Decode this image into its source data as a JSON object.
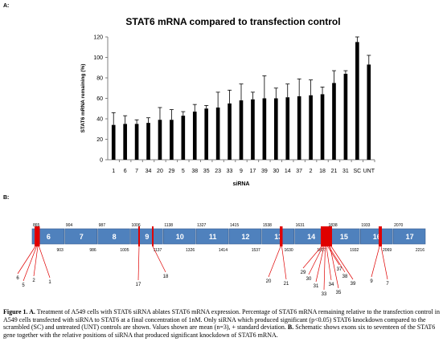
{
  "panel_a_label": "A:",
  "panel_b_label": "B:",
  "chart_data": {
    "type": "bar",
    "title": "STAT6 mRNA compared to transfection control",
    "xlabel": "siRNA",
    "ylabel": "STAT6 mRNA remaining (%)",
    "ylim": [
      0,
      120
    ],
    "yticks": [
      0,
      20,
      40,
      60,
      80,
      100,
      120
    ],
    "categories": [
      "1",
      "6",
      "7",
      "34",
      "20",
      "29",
      "5",
      "38",
      "35",
      "23",
      "33",
      "9",
      "17",
      "39",
      "30",
      "14",
      "37",
      "2",
      "18",
      "21",
      "31",
      "SC",
      "UNT"
    ],
    "values": [
      34,
      35,
      35,
      36,
      39,
      39,
      43,
      47,
      50,
      51,
      55,
      58,
      59,
      60,
      60,
      61,
      62,
      63,
      64,
      75,
      84,
      115,
      93
    ],
    "errors": [
      12,
      8,
      4,
      5,
      12,
      10,
      4,
      7,
      3,
      15,
      13,
      16,
      7,
      22,
      10,
      13,
      17,
      15,
      7,
      12,
      3,
      5,
      9
    ],
    "bar_color": "#000000",
    "grid": false
  },
  "exon_diagram": {
    "exons": [
      {
        "number": "6",
        "start": "865",
        "end": "903"
      },
      {
        "number": "7",
        "start": "904",
        "end": "986"
      },
      {
        "number": "8",
        "start": "987",
        "end": "1005"
      },
      {
        "number": "9",
        "start": "1006",
        "end": "1137"
      },
      {
        "number": "10",
        "start": "1138",
        "end": "1326"
      },
      {
        "number": "11",
        "start": "1327",
        "end": "1414"
      },
      {
        "number": "12",
        "start": "1415",
        "end": "1537"
      },
      {
        "number": "13",
        "start": "1538",
        "end": "1630"
      },
      {
        "number": "14",
        "start": "1631",
        "end": "1837"
      },
      {
        "number": "15",
        "start": "1838",
        "end": "1932"
      },
      {
        "number": "16",
        "start": "1933",
        "end": "2069"
      },
      {
        "number": "17",
        "start": "2070",
        "end": "2216"
      }
    ],
    "sirna_labels": [
      "6",
      "5",
      "2",
      "1",
      "17",
      "18",
      "20",
      "21",
      "29",
      "30",
      "31",
      "33",
      "34",
      "37",
      "38",
      "35",
      "39",
      "9",
      "7"
    ],
    "exon_color": "#4f81bd",
    "sirna_color": "#e00000"
  },
  "caption": {
    "figure_label": "Figure 1. A.",
    "part_a": "Treatment of A549 cells with STAT6 siRNA ablates STAT6 mRNA expression. Percentage of STAT6 mRNA remaining relative to the transfection control in A549 cells transfected with siRNA to STAT6 at a final concentration of 1nM. Only siRNA which produced significant (p<0.05) STAT6 knockdown compared to the scrambled (SC) and untreated (UNT) controls are shown. Values shown are mean (n=3), + standard deviation.",
    "label_b": "B.",
    "part_b": "Schematic shows exons six to seventeen of the STAT6 gene together with the relative positions of siRNA that produced significant knockdown of STAT6 mRNA."
  }
}
